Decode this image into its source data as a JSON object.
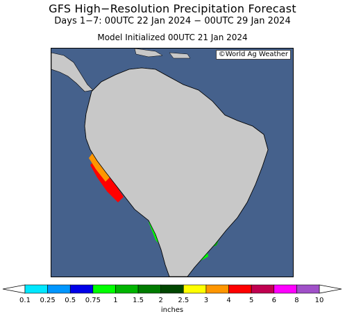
{
  "title": "GFS High−Resolution Precipitation Forecast",
  "subtitle": "Days 1−7: 00UTC 22 Jan 2024 − 00UTC 29 Jan 2024",
  "init_line": "Model Initialized 00UTC 21 Jan 2024",
  "credit": "©World Ag Weather",
  "legend": {
    "unit": "inches",
    "labels": [
      "0.1",
      "0.25",
      "0.5",
      "0.75",
      "1",
      "1.5",
      "2",
      "2.5",
      "3",
      "4",
      "5",
      "6",
      "8",
      "10"
    ],
    "colors": [
      "#00e7ff",
      "#0096ff",
      "#0000e8",
      "#00ff00",
      "#00b400",
      "#007b00",
      "#004600",
      "#ffff00",
      "#ff9600",
      "#ff0000",
      "#c00050",
      "#ff00ff",
      "#a050c8"
    ]
  },
  "colors": {
    "ocean": "#45618c",
    "land": "#c8c8c8",
    "border": "#000000"
  }
}
